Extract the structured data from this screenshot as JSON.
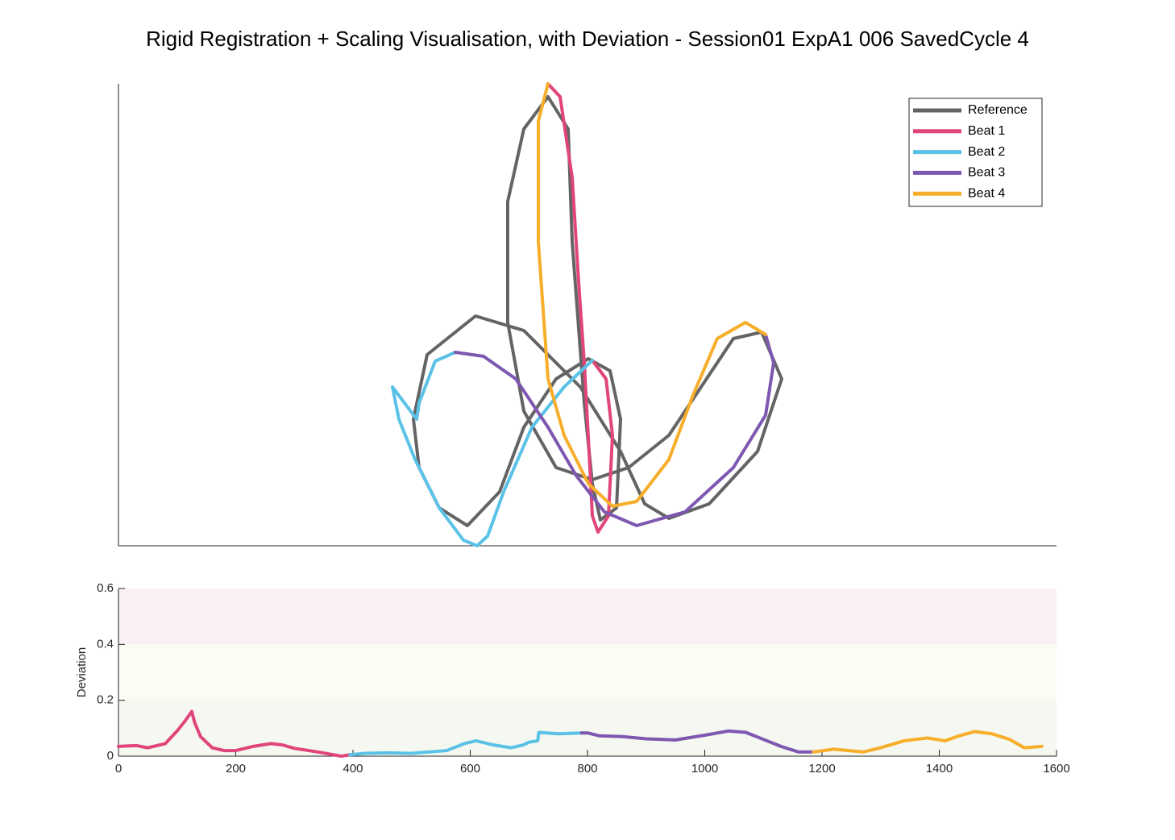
{
  "chart_data": [
    {
      "type": "line",
      "title": "Rigid Registration + Scaling Visualisation, with Deviation - Session01 ExpA1 006 SavedCycle 4",
      "xlim": [
        0,
        1164
      ],
      "ylim": [
        0,
        573
      ],
      "legend": "northeast",
      "series": [
        {
          "name": "Reference",
          "color": "#646464",
          "x": [
            533,
            558,
            563,
            578,
            588,
            598,
            618,
            623,
            610,
            583,
            543,
            503,
            473,
            433,
            398,
            373,
            366,
            383,
            443,
            503,
            573,
            623,
            653,
            683,
            733,
            793,
            823,
            798,
            763,
            723,
            683,
            633,
            588,
            543,
            503,
            483,
            483,
            503,
            533
          ],
          "values": [
            557,
            517,
            377,
            177,
            77,
            32,
            47,
            157,
            217,
            232,
            207,
            147,
            67,
            25,
            47,
            97,
            157,
            237,
            285,
            267,
            197,
            117,
            52,
            34,
            52,
            117,
            207,
            265,
            257,
            197,
            137,
            97,
            82,
            97,
            167,
            277,
            427,
            517,
            557
          ]
        },
        {
          "name": "Beat 1",
          "color": "#e0457b",
          "x": [
            533,
            548,
            563,
            571,
            578,
            585,
            588,
            595,
            608,
            613,
            605,
            588
          ],
          "values": [
            573,
            557,
            457,
            327,
            227,
            97,
            37,
            17,
            37,
            137,
            207,
            230
          ]
        },
        {
          "name": "Beat 2",
          "color": "#5bc2e7",
          "x": [
            588,
            553,
            513,
            478,
            458,
            445,
            428,
            398,
            368,
            348,
            340,
            370,
            373,
            393,
            418
          ],
          "values": [
            230,
            197,
            147,
            67,
            12,
            0,
            7,
            47,
            107,
            157,
            197,
            157,
            177,
            229,
            240
          ]
        },
        {
          "name": "Beat 3",
          "color": "#7e57b1",
          "x": [
            418,
            453,
            493,
            533,
            568,
            603,
            643,
            703,
            763,
            803,
            813,
            803
          ],
          "values": [
            240,
            235,
            207,
            147,
            87,
            42,
            25,
            42,
            97,
            162,
            227,
            262
          ]
        },
        {
          "name": "Beat 4",
          "color": "#f7ae2a",
          "x": [
            803,
            778,
            743,
            713,
            683,
            643,
            613,
            583,
            553,
            533,
            521,
            521,
            533
          ],
          "values": [
            262,
            277,
            257,
            187,
            107,
            55,
            49,
            77,
            137,
            207,
            377,
            527,
            573
          ]
        }
      ]
    },
    {
      "type": "line",
      "y_label": "Deviation",
      "xlim": [
        0,
        1600
      ],
      "ylim": [
        0,
        0.6
      ],
      "xticks": [
        0,
        200,
        400,
        600,
        800,
        1000,
        1200,
        1400,
        1600
      ],
      "yticks": [
        0,
        0.2,
        0.4,
        0.6
      ],
      "bands": [
        {
          "from": 0,
          "to": 0.2,
          "color": "#f4f8f0"
        },
        {
          "from": 0.2,
          "to": 0.4,
          "color": "#fdfcf3"
        },
        {
          "from": 0.4,
          "to": 0.6,
          "color": "#f9f0f2"
        }
      ],
      "series": [
        {
          "color": "#e0457b",
          "x": [
            0,
            30,
            50,
            80,
            100,
            115,
            125,
            130,
            140,
            160,
            180,
            200,
            230,
            260,
            280,
            300,
            340,
            380,
            395
          ],
          "values": [
            0.035,
            0.038,
            0.03,
            0.045,
            0.09,
            0.13,
            0.16,
            0.12,
            0.07,
            0.03,
            0.02,
            0.02,
            0.035,
            0.045,
            0.04,
            0.028,
            0.015,
            0,
            0.005
          ]
        },
        {
          "color": "#5bc2e7",
          "x": [
            395,
            420,
            460,
            500,
            560,
            590,
            610,
            640,
            670,
            690,
            700,
            715,
            717,
            750,
            790
          ],
          "values": [
            0.005,
            0.01,
            0.012,
            0.01,
            0.02,
            0.045,
            0.055,
            0.04,
            0.03,
            0.04,
            0.05,
            0.055,
            0.085,
            0.08,
            0.083
          ]
        },
        {
          "color": "#7e57b1",
          "x": [
            790,
            800,
            820,
            860,
            900,
            950,
            1000,
            1040,
            1070,
            1100,
            1130,
            1160,
            1185
          ],
          "values": [
            0.083,
            0.083,
            0.073,
            0.07,
            0.062,
            0.058,
            0.075,
            0.09,
            0.085,
            0.06,
            0.035,
            0.015,
            0.015
          ]
        },
        {
          "color": "#f7ae2a",
          "x": [
            1185,
            1220,
            1270,
            1300,
            1340,
            1380,
            1410,
            1430,
            1460,
            1490,
            1520,
            1545,
            1575
          ],
          "values": [
            0.015,
            0.025,
            0.015,
            0.03,
            0.055,
            0.065,
            0.055,
            0.07,
            0.088,
            0.08,
            0.06,
            0.03,
            0.035
          ]
        }
      ]
    }
  ]
}
